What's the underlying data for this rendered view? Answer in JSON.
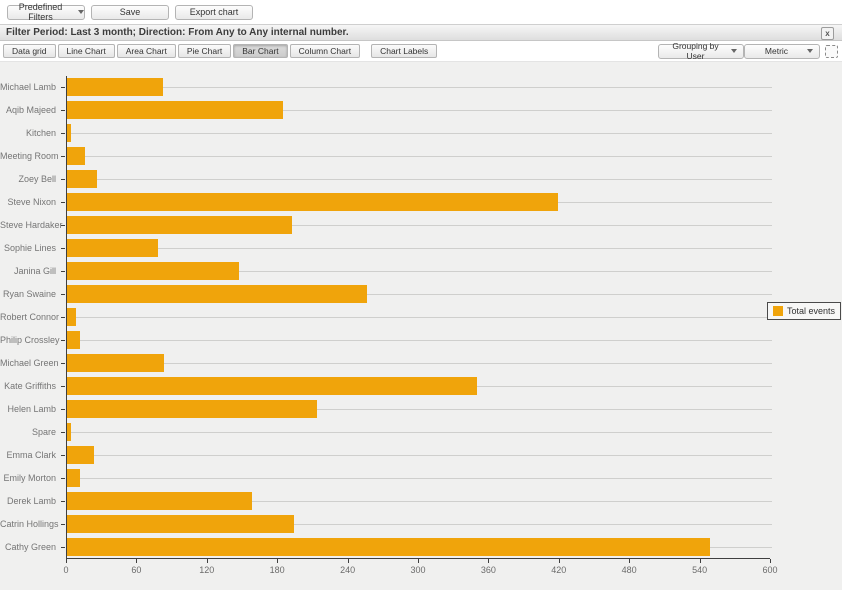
{
  "toolbar": {
    "predefined_filters_label": "Predefined Filters",
    "save_label": "Save",
    "export_chart_label": "Export chart"
  },
  "filter_bar": {
    "text": "Filter Period: Last 3 month; Direction: From Any to Any internal number.",
    "close_icon": "x"
  },
  "tab_bar": {
    "tabs": [
      {
        "label": "Data grid",
        "active": false
      },
      {
        "label": "Line Chart",
        "active": false
      },
      {
        "label": "Area Chart",
        "active": false
      },
      {
        "label": "Pie Chart",
        "active": false
      },
      {
        "label": "Bar Chart",
        "active": true
      },
      {
        "label": "Column Chart",
        "active": false
      }
    ],
    "chart_labels_label": "Chart Labels",
    "grouping_dropdown_value": "Grouping by User",
    "metric_dropdown_value": "Metric"
  },
  "legend": {
    "position": "right",
    "items": [
      {
        "label": "Total events",
        "color": "#f0a40b"
      }
    ]
  },
  "chart_data": {
    "type": "bar",
    "orientation": "horizontal",
    "title": "",
    "xlabel": "",
    "ylabel": "",
    "xlim": [
      0,
      600
    ],
    "xticks": [
      0,
      60,
      120,
      180,
      240,
      300,
      360,
      420,
      480,
      540,
      600
    ],
    "grid": "category-lines-horizontal",
    "legend_position": "right",
    "categories": [
      "Michael Lamb",
      "Aqib Majeed",
      "Kitchen",
      "Meeting Room",
      "Zoey Bell",
      "Steve Nixon",
      "Steve Hardaker",
      "Sophie Lines",
      "Janina Gill",
      "Ryan Swaine",
      "Robert Connor",
      "Philip Crossley",
      "Michael Green",
      "Kate Griffiths",
      "Helen Lamb",
      "Spare",
      "Emma Clark",
      "Emily Morton",
      "Derek Lamb",
      "Catrin Hollings",
      "Cathy Green"
    ],
    "series": [
      {
        "name": "Total events",
        "color": "#f0a40b",
        "values": [
          82,
          184,
          3,
          15,
          26,
          419,
          192,
          78,
          147,
          256,
          8,
          11,
          83,
          350,
          213,
          3,
          23,
          11,
          158,
          194,
          549
        ]
      }
    ]
  },
  "colors": {
    "bar": "#f0a40b",
    "axis": "#3f3f3f",
    "gridline": "#cfcfcd",
    "chart_background": "#f0f0ef"
  }
}
